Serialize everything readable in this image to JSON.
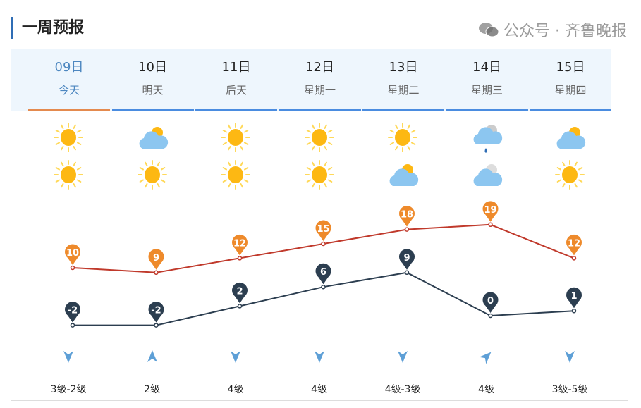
{
  "title": "一周预报",
  "days": [
    {
      "date": "09日",
      "label": "今天",
      "day": "sunny",
      "night": "sunny",
      "high": 10,
      "low": -2,
      "wind_dir": "down",
      "wind": "3级-2级",
      "today": true
    },
    {
      "date": "10日",
      "label": "明天",
      "day": "partly-cloudy",
      "night": "sunny",
      "high": 9,
      "low": -2,
      "wind_dir": "up",
      "wind": "2级"
    },
    {
      "date": "11日",
      "label": "后天",
      "day": "sunny",
      "night": "sunny",
      "high": 12,
      "low": 2,
      "wind_dir": "down",
      "wind": "4级"
    },
    {
      "date": "12日",
      "label": "星期一",
      "day": "sunny",
      "night": "sunny",
      "high": 15,
      "low": 6,
      "wind_dir": "down",
      "wind": "4级"
    },
    {
      "date": "13日",
      "label": "星期二",
      "day": "sunny",
      "night": "partly-cloudy",
      "high": 18,
      "low": 9,
      "wind_dir": "down",
      "wind": "4级-3级"
    },
    {
      "date": "14日",
      "label": "星期三",
      "day": "light-rain",
      "night": "cloudy",
      "high": 19,
      "low": 0,
      "wind_dir": "northeast",
      "wind": "4级"
    },
    {
      "date": "15日",
      "label": "星期四",
      "day": "partly-cloudy",
      "night": "sunny",
      "high": 12,
      "low": 1,
      "wind_dir": "down",
      "wind": "3级-5级"
    }
  ],
  "colors": {
    "high": "#c0392b",
    "high_pin": "#ee8a2b",
    "low": "#2c3e50",
    "low_pin": "#2c3e50",
    "wind": "#5d9fd6"
  },
  "watermark": "公众号 · 齐鲁晚报"
}
